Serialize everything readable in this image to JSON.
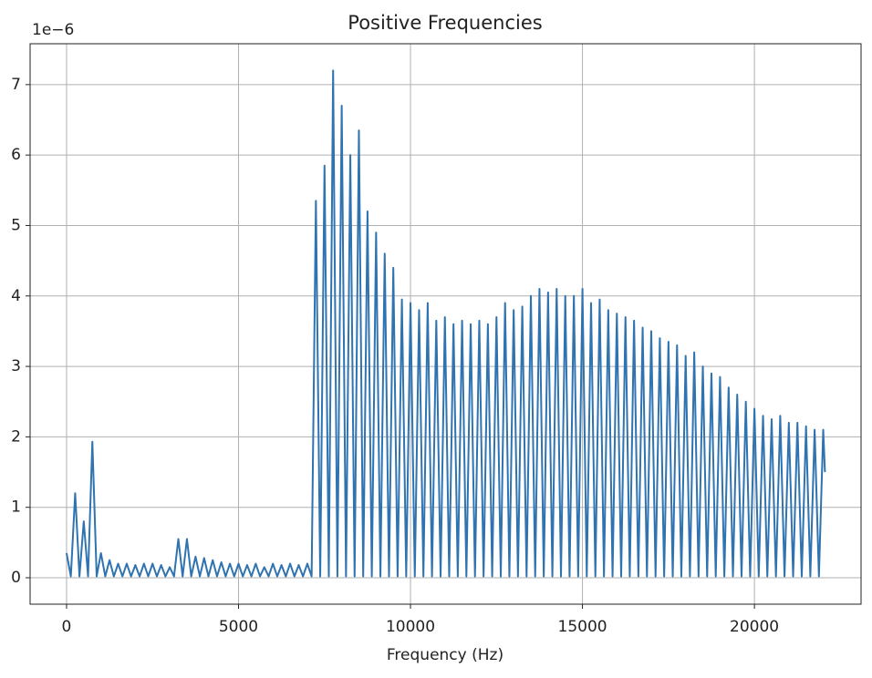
{
  "chart_data": {
    "type": "line",
    "title": "Positive Frequencies",
    "xlabel": "Frequency (Hz)",
    "y_offset_label": "1e−6",
    "x": [
      0,
      125,
      250,
      375,
      500,
      625,
      750,
      875,
      1000,
      1125,
      1250,
      1375,
      1500,
      1625,
      1750,
      1875,
      2000,
      2125,
      2250,
      2375,
      2500,
      2625,
      2750,
      2875,
      3000,
      3125,
      3250,
      3375,
      3500,
      3625,
      3750,
      3875,
      4000,
      4125,
      4250,
      4375,
      4500,
      4625,
      4750,
      4875,
      5000,
      5125,
      5250,
      5375,
      5500,
      5625,
      5750,
      5875,
      6000,
      6125,
      6250,
      6375,
      6500,
      6625,
      6750,
      6875,
      7000,
      7125,
      7250,
      7375,
      7500,
      7625,
      7750,
      7875,
      8000,
      8125,
      8250,
      8375,
      8500,
      8625,
      8750,
      8875,
      9000,
      9125,
      9250,
      9375,
      9500,
      9625,
      9750,
      9875,
      10000,
      10125,
      10250,
      10375,
      10500,
      10625,
      10750,
      10875,
      11000,
      11125,
      11250,
      11375,
      11500,
      11625,
      11750,
      11875,
      12000,
      12125,
      12250,
      12375,
      12500,
      12625,
      12750,
      12875,
      13000,
      13125,
      13250,
      13375,
      13500,
      13625,
      13750,
      13875,
      14000,
      14125,
      14250,
      14375,
      14500,
      14625,
      14750,
      14875,
      15000,
      15125,
      15250,
      15375,
      15500,
      15625,
      15750,
      15875,
      16000,
      16125,
      16250,
      16375,
      16500,
      16625,
      16750,
      16875,
      17000,
      17125,
      17250,
      17375,
      17500,
      17625,
      17750,
      17875,
      18000,
      18125,
      18250,
      18375,
      18500,
      18625,
      18750,
      18875,
      19000,
      19125,
      19250,
      19375,
      19500,
      19625,
      19750,
      19875,
      20000,
      20125,
      20250,
      20375,
      20500,
      20625,
      20750,
      20875,
      21000,
      21125,
      21250,
      21375,
      21500,
      21625,
      21750,
      21875,
      22000,
      22050
    ],
    "values": [
      0.35,
      0.02,
      1.2,
      0.02,
      0.8,
      0.02,
      1.93,
      0.02,
      0.35,
      0.02,
      0.25,
      0.02,
      0.2,
      0.02,
      0.2,
      0.02,
      0.18,
      0.02,
      0.2,
      0.02,
      0.2,
      0.02,
      0.18,
      0.02,
      0.15,
      0.02,
      0.55,
      0.02,
      0.55,
      0.02,
      0.3,
      0.02,
      0.28,
      0.02,
      0.25,
      0.02,
      0.22,
      0.02,
      0.2,
      0.02,
      0.2,
      0.02,
      0.18,
      0.02,
      0.2,
      0.02,
      0.15,
      0.02,
      0.2,
      0.02,
      0.18,
      0.02,
      0.2,
      0.02,
      0.18,
      0.02,
      0.2,
      0.02,
      5.35,
      0.02,
      5.85,
      0.02,
      7.2,
      0.02,
      6.7,
      0.02,
      6.0,
      0.02,
      6.35,
      0.02,
      5.2,
      0.02,
      4.9,
      0.02,
      4.6,
      0.02,
      4.4,
      0.02,
      3.95,
      0.02,
      3.9,
      0.02,
      3.8,
      0.02,
      3.9,
      0.02,
      3.65,
      0.02,
      3.7,
      0.02,
      3.6,
      0.02,
      3.65,
      0.02,
      3.6,
      0.02,
      3.65,
      0.02,
      3.6,
      0.02,
      3.7,
      0.02,
      3.9,
      0.02,
      3.8,
      0.02,
      3.85,
      0.02,
      4.0,
      0.02,
      4.1,
      0.02,
      4.05,
      0.02,
      4.1,
      0.02,
      4.0,
      0.02,
      4.0,
      0.02,
      4.1,
      0.02,
      3.9,
      0.02,
      3.95,
      0.02,
      3.8,
      0.02,
      3.75,
      0.02,
      3.7,
      0.02,
      3.65,
      0.02,
      3.55,
      0.02,
      3.5,
      0.02,
      3.4,
      0.02,
      3.35,
      0.02,
      3.3,
      0.02,
      3.15,
      0.02,
      3.2,
      0.02,
      3.0,
      0.02,
      2.9,
      0.02,
      2.85,
      0.02,
      2.7,
      0.02,
      2.6,
      0.02,
      2.5,
      0.02,
      2.4,
      0.02,
      2.3,
      0.02,
      2.25,
      0.02,
      2.3,
      0.02,
      2.2,
      0.02,
      2.2,
      0.02,
      2.15,
      0.02,
      2.1,
      0.02,
      2.1,
      1.5
    ],
    "color": "#2f73b0",
    "xlim": [
      -1060,
      23100
    ],
    "ylim": [
      -0.375,
      7.58
    ],
    "xticks": [
      0,
      5000,
      10000,
      15000,
      20000
    ],
    "yticks": [
      0,
      1,
      2,
      3,
      4,
      5,
      6,
      7
    ],
    "grid": true
  }
}
